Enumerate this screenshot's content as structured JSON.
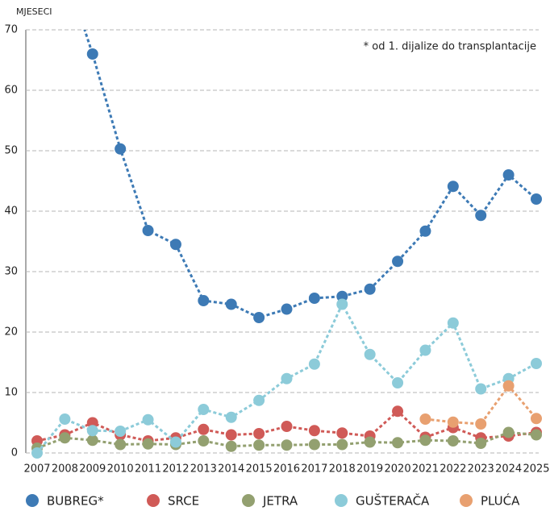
{
  "chart_data": {
    "type": "line",
    "y_label": "MJESECI",
    "annotation": "* od 1. dijalize do transplantacije",
    "categories": [
      "2007",
      "2008",
      "2009",
      "2010",
      "2011",
      "2012",
      "2013",
      "2014",
      "2015",
      "2016",
      "2017",
      "2018",
      "2019",
      "2020",
      "2021",
      "2022",
      "2023",
      "2024",
      "2025"
    ],
    "series": [
      {
        "name": "BUBREG*",
        "color": "#3d7ab5",
        "values": [
          null,
          80,
          66,
          50.3,
          36.8,
          34.5,
          25.2,
          24.6,
          22.4,
          23.8,
          25.6,
          25.9,
          27.1,
          31.7,
          36.7,
          44.1,
          39.3,
          46,
          42
        ]
      },
      {
        "name": "SRCE",
        "color": "#d05a57",
        "values": [
          2,
          3,
          5,
          3,
          2,
          2.5,
          3.9,
          3,
          3.2,
          4.4,
          3.7,
          3.3,
          2.8,
          6.9,
          2.6,
          4.2,
          2.5,
          2.8,
          3.4
        ]
      },
      {
        "name": "JETRA",
        "color": "#93a070",
        "values": [
          0.8,
          2.5,
          2.1,
          1.4,
          1.5,
          1.4,
          2,
          1.1,
          1.3,
          1.3,
          1.4,
          1.4,
          1.8,
          1.7,
          2.1,
          2,
          1.6,
          3.4,
          3
        ]
      },
      {
        "name": "GUŠTERAČA",
        "color": "#8ccbd9",
        "values": [
          0,
          5.6,
          3.7,
          3.6,
          5.5,
          1.8,
          7.2,
          5.9,
          8.7,
          12.3,
          14.7,
          24.6,
          16.3,
          11.6,
          17,
          21.5,
          10.6,
          12.3,
          14.8
        ]
      },
      {
        "name": "PLUĆA",
        "color": "#e8a070",
        "values": [
          null,
          null,
          null,
          null,
          null,
          null,
          null,
          null,
          null,
          null,
          null,
          null,
          null,
          null,
          5.6,
          5.1,
          4.8,
          11.1,
          5.7
        ]
      }
    ],
    "ylim": [
      0,
      70
    ],
    "yticks": [
      0,
      10,
      20,
      30,
      40,
      50,
      60,
      70
    ],
    "grid": true
  }
}
